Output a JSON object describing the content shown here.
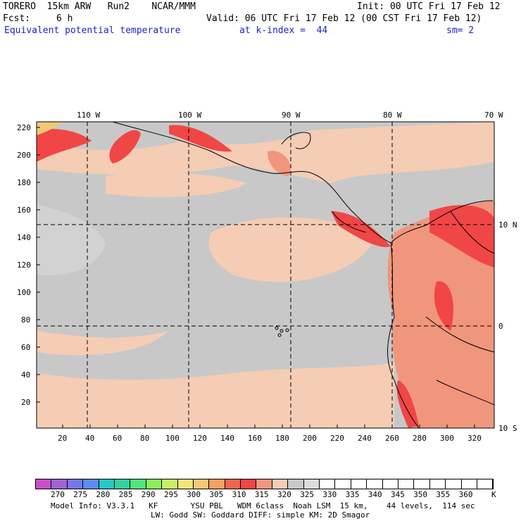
{
  "header": {
    "model": "TORERO  15km ARW   Run2    NCAR/MMM",
    "init": "Init: 00 UTC Fri 17 Feb 12",
    "fcst_label": "Fcst:",
    "fcst_value": "6 h",
    "valid": "Valid: 06 UTC Fri 17 Feb 12 (00 CST Fri 17 Feb 12)",
    "field": "Equivalent potential temperature",
    "level": "at k-index =  44",
    "smooth": "sm= 2"
  },
  "map": {
    "lon_labels": [
      "110 W",
      "100 W",
      "90 W",
      "80 W",
      "70 W"
    ],
    "lat_labels": [
      "10 N",
      "0",
      "10 S"
    ],
    "x_ticks": [
      "20",
      "40",
      "60",
      "80",
      "100",
      "120",
      "140",
      "160",
      "180",
      "200",
      "220",
      "240",
      "260",
      "280",
      "300",
      "320"
    ],
    "y_ticks": [
      "20",
      "40",
      "60",
      "80",
      "100",
      "120",
      "140",
      "160",
      "180",
      "200",
      "220"
    ]
  },
  "colorbar": {
    "levels": [
      "270",
      "275",
      "280",
      "285",
      "290",
      "295",
      "300",
      "305",
      "310",
      "315",
      "320",
      "325",
      "330",
      "335",
      "340",
      "345",
      "350",
      "355",
      "360"
    ],
    "unit": "K",
    "colors": [
      "#c850c8",
      "#a064d2",
      "#7878e6",
      "#5a8cf0",
      "#28c8c8",
      "#32d2a0",
      "#50e678",
      "#8cf05a",
      "#c8f064",
      "#f0e678",
      "#f5c878",
      "#f5a064",
      "#f06450",
      "#f04646",
      "#f0967d",
      "#f5cdb4",
      "#c8c8c8",
      "#dcdcdc",
      "#ffffff"
    ]
  },
  "footer": {
    "line1": "Model Info: V3.3.1   KF       YSU PBL   WDM 6class  Noah LSM  15 km,    44 levels,  114 sec",
    "line2": "LW: Godd SW: Goddard DIFF: simple KM: 2D Smagor"
  }
}
